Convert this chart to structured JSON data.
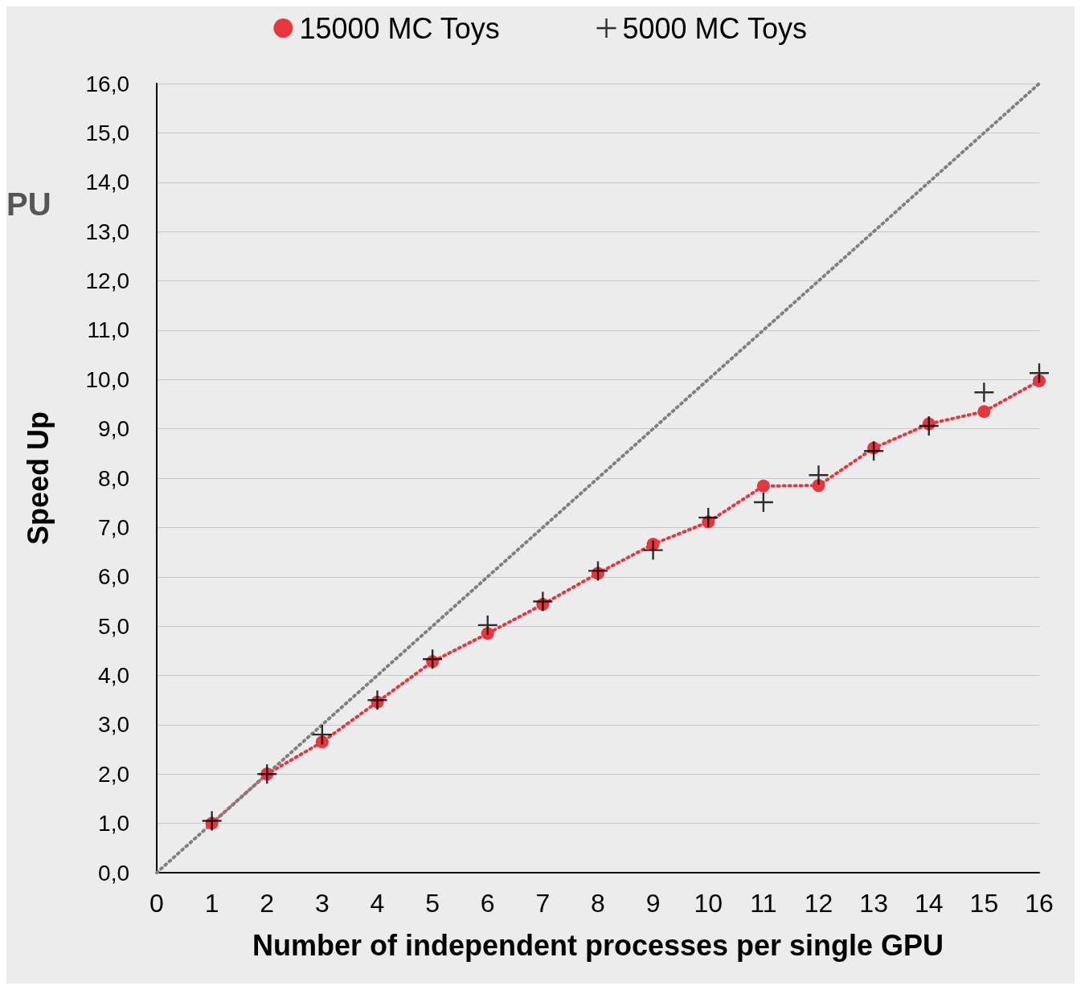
{
  "chart_data": {
    "type": "scatter",
    "xlabel": "Number of independent processes per single GPU",
    "ylabel": "Speed Up",
    "annotations": [
      "PU"
    ],
    "x": [
      1,
      2,
      3,
      4,
      5,
      6,
      7,
      8,
      9,
      10,
      11,
      12,
      13,
      14,
      15,
      16
    ],
    "series": [
      {
        "name": "15000 MC Toys",
        "type": "line",
        "color": "#e8363f",
        "marker": "circle",
        "line_style": "dotted",
        "values": [
          1.0,
          2.0,
          2.65,
          3.46,
          4.28,
          4.85,
          5.44,
          6.07,
          6.66,
          7.11,
          7.84,
          7.85,
          8.61,
          9.1,
          9.35,
          9.97
        ]
      },
      {
        "name": "5000 MC Toys",
        "color": "#000000",
        "marker": "cross",
        "values": [
          1.05,
          2.0,
          2.8,
          3.5,
          4.33,
          5.02,
          5.5,
          6.12,
          6.54,
          7.2,
          7.51,
          8.06,
          8.55,
          9.06,
          9.74,
          10.13
        ]
      },
      {
        "type": "line",
        "color": "#808080",
        "marker": "none",
        "line_style": "dotted",
        "x": [
          0,
          16
        ],
        "values": [
          0,
          16
        ]
      }
    ],
    "xlim": [
      0,
      16
    ],
    "xticks": [
      0,
      1,
      2,
      3,
      4,
      5,
      6,
      7,
      8,
      9,
      10,
      11,
      12,
      13,
      14,
      15,
      16
    ],
    "ylim": [
      0,
      16
    ],
    "yticks": [
      {
        "value": 0,
        "label": "0,0"
      },
      {
        "value": 1,
        "label": "1,0"
      },
      {
        "value": 2,
        "label": "2,0"
      },
      {
        "value": 3,
        "label": "3,0"
      },
      {
        "value": 4,
        "label": "4,0"
      },
      {
        "value": 5,
        "label": "5,0"
      },
      {
        "value": 6,
        "label": "6,0"
      },
      {
        "value": 7,
        "label": "7,0"
      },
      {
        "value": 8,
        "label": "8,0"
      },
      {
        "value": 9,
        "label": "9,0"
      },
      {
        "value": 10,
        "label": "10,0"
      },
      {
        "value": 11,
        "label": "11,0"
      },
      {
        "value": 12,
        "label": "12,0"
      },
      {
        "value": 13,
        "label": "13,0"
      },
      {
        "value": 14,
        "label": "14,0"
      },
      {
        "value": 15,
        "label": "15,0"
      },
      {
        "value": 16,
        "label": "16,0"
      }
    ],
    "grid": "y",
    "legend": "top"
  }
}
